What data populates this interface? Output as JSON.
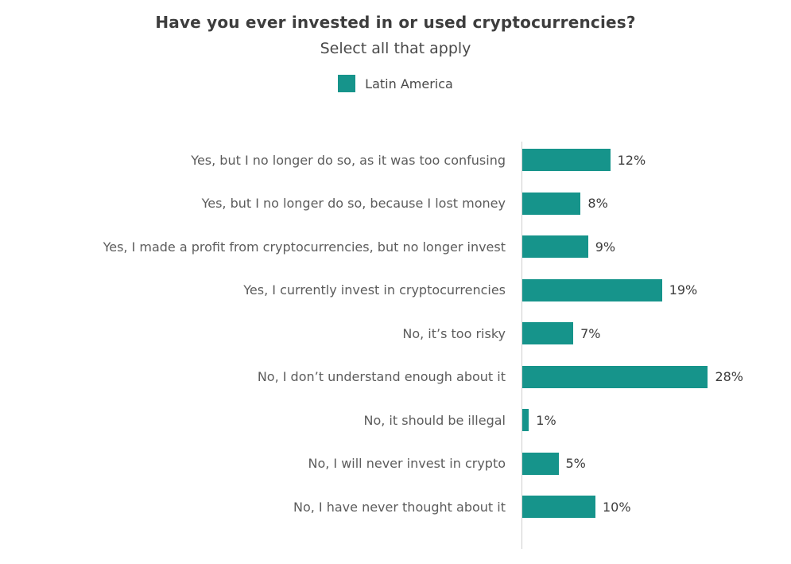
{
  "header": {
    "title": "Have you ever invested in or used cryptocurrencies?",
    "subtitle": "Select all that apply"
  },
  "legend": {
    "label": "Latin America",
    "color": "#16948B"
  },
  "chart_data": {
    "type": "bar",
    "orientation": "horizontal",
    "title": "Have you ever invested in or used cryptocurrencies?",
    "subtitle": "Select all that apply",
    "series_name": "Latin America",
    "bar_color": "#16948B",
    "categories": [
      "Yes, but I no longer do so, as it was too confusing",
      "Yes, but I no longer do so, because I lost money",
      "Yes, I made a profit from cryptocurrencies, but no longer invest",
      "Yes, I currently invest in cryptocurrencies",
      "No, it’s too risky",
      "No, I don’t understand enough about it",
      "No, it should be illegal",
      "No, I will never invest in crypto",
      "No, I have never thought about it"
    ],
    "values": [
      12,
      8,
      9,
      19,
      7,
      28,
      1,
      5,
      10
    ],
    "value_suffix": "%",
    "xlim": [
      0,
      30
    ],
    "xlabel": "",
    "ylabel": "",
    "grid": false,
    "legend_position": "top-center"
  }
}
